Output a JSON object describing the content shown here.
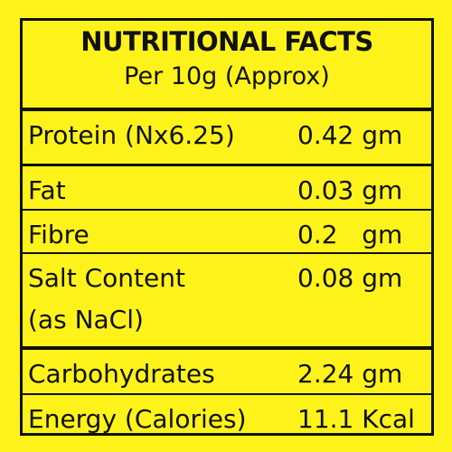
{
  "header": {
    "title": "NUTRITIONAL FACTS",
    "subtitle": "Per 10g (Approx)"
  },
  "table": {
    "rows": [
      {
        "label": [
          "Protein (Nx6.25)"
        ],
        "value": "0.42 gm"
      },
      {
        "label": [
          "Fat"
        ],
        "value": "0.03 gm"
      },
      {
        "label": [
          "Fibre"
        ],
        "value": "0.2   gm"
      },
      {
        "label": [
          "Salt Content",
          "(as NaCl)"
        ],
        "value": "0.08 gm"
      },
      {
        "label": [
          "Carbohydrates"
        ],
        "value": "2.24 gm"
      },
      {
        "label": [
          "Energy (Calories)"
        ],
        "value": "11.1 Kcal"
      }
    ]
  }
}
